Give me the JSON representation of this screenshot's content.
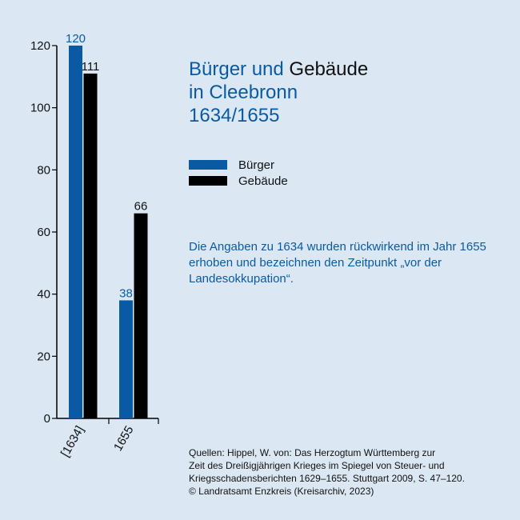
{
  "title": {
    "part1": "Bürger und",
    "part2": "Gebäude",
    "line2": "in Cleebronn",
    "line3": "1634/1655"
  },
  "legend": [
    {
      "label": "Bürger",
      "color": "#0a5aa3"
    },
    {
      "label": "Gebäude",
      "color": "#000000"
    }
  ],
  "note": "Die Angaben zu 1634 wurden rückwirkend im Jahr 1655 erhoben und bezeichnen den Zeitpunkt „vor der Landesokkupation“.",
  "source": {
    "line1": "Quellen: Hippel, W. von: Das Herzogtum Württemberg zur",
    "line2": "Zeit des Dreißigjährigen Krieges im Spiegel von Steuer- und",
    "line3": "Kriegsschadensberichten 1629–1655. Stuttgart 2009, S. 47–120.",
    "line4": "© Landratsamt Enzkreis (Kreisarchiv, 2023)"
  },
  "chart_data": {
    "type": "bar",
    "categories": [
      "[1634]",
      "1655"
    ],
    "series": [
      {
        "name": "Bürger",
        "values": [
          120,
          38
        ],
        "color": "#0a5aa3"
      },
      {
        "name": "Gebäude",
        "values": [
          111,
          66
        ],
        "color": "#000000"
      }
    ],
    "ylim": [
      0,
      120
    ],
    "yticks": [
      0,
      20,
      40,
      60,
      80,
      100,
      120
    ],
    "legend_position": "right",
    "grid": false
  }
}
